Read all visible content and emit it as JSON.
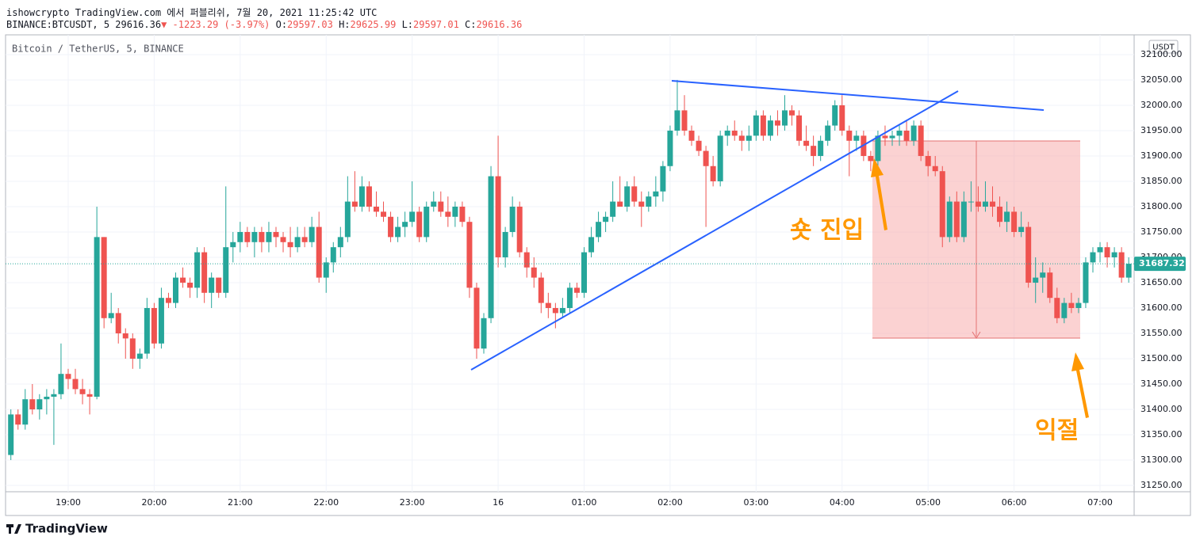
{
  "header": {
    "publisher": "ishowcrypto TradingView.com 에서 퍼블리쉬, 7월 20, 2021 11:25:42 UTC",
    "symbol": "BINANCE:BTCUSDT, 5",
    "price": "29616.36",
    "change": "▼ -1223.29 (-3.97%)",
    "ohlc": [
      {
        "label": "O:",
        "value": "29597.03"
      },
      {
        "label": "H:",
        "value": "29625.99"
      },
      {
        "label": "L:",
        "value": "29597.01"
      },
      {
        "label": "C:",
        "value": "29616.36"
      }
    ]
  },
  "footer": {
    "brand": "TradingView"
  },
  "chart_data": {
    "type": "candlestick",
    "title": "Bitcoin / TetherUS, 5, BINANCE",
    "currency": "USDT",
    "up_color": "#26a69a",
    "down_color": "#ef5350",
    "grid": true,
    "annotations": [
      "숏 진입",
      "익절"
    ],
    "categories": [
      null,
      null,
      null,
      null,
      null,
      null,
      null,
      null,
      "19:00",
      null,
      null,
      null,
      null,
      null,
      null,
      null,
      null,
      null,
      null,
      null,
      "20:00",
      null,
      null,
      null,
      null,
      null,
      null,
      null,
      null,
      null,
      null,
      null,
      "21:00",
      null,
      null,
      null,
      null,
      null,
      null,
      null,
      null,
      null,
      null,
      null,
      "22:00",
      null,
      null,
      null,
      null,
      null,
      null,
      null,
      null,
      null,
      null,
      null,
      "23:00",
      null,
      null,
      null,
      null,
      null,
      null,
      null,
      null,
      null,
      null,
      null,
      "16",
      null,
      null,
      null,
      null,
      null,
      null,
      null,
      null,
      null,
      null,
      null,
      "01:00",
      null,
      null,
      null,
      null,
      null,
      null,
      null,
      null,
      null,
      null,
      null,
      "02:00",
      null,
      null,
      null,
      null,
      null,
      null,
      null,
      null,
      null,
      null,
      null,
      "03:00",
      null,
      null,
      null,
      null,
      null,
      null,
      null,
      null,
      null,
      null,
      null,
      "04:00",
      null,
      null,
      null,
      null,
      null,
      null,
      null,
      null,
      null,
      null,
      null,
      "05:00",
      null,
      null,
      null,
      null,
      null,
      null,
      null,
      null,
      null,
      null,
      null,
      "06:00",
      null,
      null,
      null,
      null,
      null,
      null,
      null,
      null,
      null,
      null,
      null,
      "07:00",
      null,
      null,
      null,
      null
    ],
    "open": [
      31310,
      31390,
      31370,
      31420,
      31400,
      31420,
      31425,
      31430,
      31470,
      31460,
      31440,
      31430,
      31425,
      31740,
      31580,
      31590,
      31550,
      31540,
      31500,
      31510,
      31600,
      31530,
      31620,
      31610,
      31660,
      31650,
      31640,
      31710,
      31630,
      31660,
      31630,
      31720,
      31730,
      31750,
      31730,
      31750,
      31730,
      31750,
      31740,
      31730,
      31720,
      31740,
      31730,
      31760,
      31660,
      31690,
      31720,
      31740,
      31810,
      31800,
      31840,
      31800,
      31790,
      31780,
      31740,
      31760,
      31770,
      31790,
      31740,
      31800,
      31810,
      31790,
      31780,
      31800,
      31770,
      31640,
      31520,
      31580,
      31860,
      31700,
      31750,
      31800,
      31710,
      31680,
      31660,
      31610,
      31600,
      31590,
      31600,
      31640,
      31630,
      31710,
      31740,
      31770,
      31780,
      31810,
      31800,
      31840,
      31810,
      31800,
      31820,
      31830,
      31880,
      31950,
      31990,
      31950,
      31930,
      31910,
      31880,
      31850,
      31940,
      31950,
      31940,
      31930,
      31940,
      31980,
      31940,
      31970,
      31960,
      31990,
      31980,
      31930,
      31920,
      31900,
      31930,
      31960,
      32000,
      31950,
      31930,
      31940,
      31900,
      31890,
      31940,
      31935,
      31940,
      31950,
      31930,
      31960,
      31900,
      31880,
      31870,
      31740,
      31810,
      31740,
      31810,
      31810,
      31800,
      31810,
      31800,
      31770,
      31790,
      31750,
      31760,
      31650,
      31660,
      31670,
      31620,
      31580,
      31610,
      31600,
      31610,
      31690,
      31710,
      31720,
      31700,
      31710,
      31660
    ],
    "high": [
      31400,
      31400,
      31440,
      31450,
      31430,
      31440,
      31440,
      31530,
      31480,
      31480,
      31460,
      31440,
      31800,
      31740,
      31630,
      31600,
      31560,
      31550,
      31520,
      31620,
      31610,
      31640,
      31630,
      31670,
      31680,
      31660,
      31720,
      31720,
      31670,
      31660,
      31840,
      31750,
      31770,
      31760,
      31760,
      31760,
      31770,
      31760,
      31750,
      31760,
      31760,
      31760,
      31780,
      31790,
      31700,
      31730,
      31760,
      31860,
      31870,
      31860,
      31850,
      31830,
      31810,
      31790,
      31780,
      31790,
      31850,
      31800,
      31810,
      31830,
      31830,
      31820,
      31810,
      31810,
      31780,
      31650,
      31590,
      31880,
      31940,
      31760,
      31820,
      31810,
      31720,
      31700,
      31670,
      31630,
      31610,
      31620,
      31650,
      31650,
      31720,
      31760,
      31790,
      31790,
      31850,
      31860,
      31850,
      31860,
      31830,
      31830,
      31860,
      31890,
      31960,
      32050,
      32020,
      31960,
      31940,
      31920,
      31900,
      31950,
      31960,
      31970,
      31950,
      31960,
      31990,
      31990,
      31980,
      31990,
      32020,
      32000,
      31990,
      31960,
      31940,
      31940,
      31970,
      32010,
      32020,
      31960,
      31950,
      31950,
      31910,
      31950,
      31960,
      31950,
      31960,
      31970,
      31970,
      31970,
      31910,
      31900,
      31880,
      31820,
      31830,
      31830,
      31850,
      31840,
      31850,
      31840,
      31820,
      31810,
      31800,
      31790,
      31770,
      31700,
      31690,
      31680,
      31640,
      31620,
      31630,
      31620,
      31700,
      31720,
      31730,
      31730,
      31720,
      31720,
      31700
    ],
    "low": [
      31300,
      31360,
      31360,
      31390,
      31380,
      31390,
      31330,
      31420,
      31440,
      31430,
      31410,
      31390,
      31420,
      31560,
      31570,
      31530,
      31500,
      31480,
      31480,
      31500,
      31520,
      31520,
      31600,
      31600,
      31640,
      31620,
      31620,
      31610,
      31600,
      31620,
      31620,
      31690,
      31710,
      31720,
      31700,
      31710,
      31710,
      31720,
      31710,
      31700,
      31710,
      31720,
      31720,
      31650,
      31630,
      31670,
      31700,
      31730,
      31790,
      31790,
      31790,
      31780,
      31770,
      31730,
      31730,
      31740,
      31760,
      31730,
      31730,
      31790,
      31780,
      31760,
      31760,
      31760,
      31620,
      31500,
      31510,
      31570,
      31680,
      31680,
      31740,
      31700,
      31660,
      31640,
      31590,
      31580,
      31560,
      31580,
      31590,
      31620,
      31620,
      31700,
      31730,
      31750,
      31770,
      31800,
      31790,
      31800,
      31760,
      31790,
      31800,
      31810,
      31870,
      31940,
      31940,
      31920,
      31900,
      31760,
      31840,
      31840,
      31920,
      31930,
      31910,
      31910,
      31930,
      31930,
      31930,
      31940,
      31950,
      31960,
      31920,
      31910,
      31880,
      31890,
      31920,
      31950,
      31940,
      31860,
      31910,
      31890,
      31870,
      31880,
      31920,
      31920,
      31920,
      31920,
      31920,
      31890,
      31860,
      31860,
      31720,
      31730,
      31730,
      31730,
      31790,
      31790,
      31790,
      31780,
      31760,
      31750,
      31740,
      31740,
      31640,
      31610,
      31630,
      31610,
      31570,
      31570,
      31590,
      31590,
      31600,
      31670,
      31690,
      31680,
      31680,
      31650,
      31650
    ],
    "close": [
      31390,
      31370,
      31420,
      31400,
      31420,
      31425,
      31430,
      31470,
      31460,
      31440,
      31430,
      31425,
      31740,
      31580,
      31590,
      31550,
      31540,
      31500,
      31510,
      31600,
      31530,
      31620,
      31610,
      31660,
      31650,
      31640,
      31710,
      31630,
      31660,
      31630,
      31720,
      31730,
      31750,
      31730,
      31750,
      31730,
      31750,
      31740,
      31730,
      31720,
      31740,
      31730,
      31760,
      31660,
      31690,
      31720,
      31740,
      31810,
      31800,
      31840,
      31800,
      31790,
      31780,
      31740,
      31760,
      31770,
      31790,
      31740,
      31800,
      31810,
      31790,
      31780,
      31800,
      31770,
      31640,
      31520,
      31580,
      31860,
      31700,
      31750,
      31800,
      31710,
      31680,
      31660,
      31610,
      31600,
      31590,
      31600,
      31640,
      31630,
      31710,
      31740,
      31770,
      31780,
      31810,
      31800,
      31840,
      31810,
      31800,
      31820,
      31830,
      31880,
      31950,
      31990,
      31950,
      31930,
      31910,
      31880,
      31850,
      31940,
      31950,
      31940,
      31930,
      31940,
      31980,
      31940,
      31970,
      31960,
      31990,
      31980,
      31930,
      31920,
      31900,
      31930,
      31960,
      32000,
      31950,
      31930,
      31940,
      31900,
      31890,
      31940,
      31935,
      31940,
      31950,
      31930,
      31960,
      31900,
      31880,
      31870,
      31740,
      31810,
      31740,
      31810,
      31810,
      31800,
      31810,
      31800,
      31770,
      31790,
      31750,
      31760,
      31650,
      31660,
      31670,
      31620,
      31580,
      31610,
      31600,
      31610,
      31690,
      31710,
      31720,
      31700,
      31710,
      31660,
      31687.32
    ],
    "ylim": [
      31237.5,
      32139
    ],
    "yticks": [
      {
        "value": 31250,
        "label": "31250.00"
      },
      {
        "value": 31300,
        "label": "31300.00"
      },
      {
        "value": 31350,
        "label": "31350.00"
      },
      {
        "value": 31400,
        "label": "31400.00"
      },
      {
        "value": 31450,
        "label": "31450.00"
      },
      {
        "value": 31500,
        "label": "31500.00"
      },
      {
        "value": 31550,
        "label": "31550.00"
      },
      {
        "value": 31600,
        "label": "31600.00"
      },
      {
        "value": 31650,
        "label": "31650.00"
      },
      {
        "value": 31700,
        "label": "31700.00"
      },
      {
        "value": 31750,
        "label": "31750.00"
      },
      {
        "value": 31800,
        "label": "31800.00"
      },
      {
        "value": 31850,
        "label": "31850.00"
      },
      {
        "value": 31900,
        "label": "31900.00"
      },
      {
        "value": 31950,
        "label": "31950.00"
      },
      {
        "value": 32000,
        "label": "32000.00"
      },
      {
        "value": 32050,
        "label": "32050.00"
      },
      {
        "value": 32100,
        "label": "32100.00"
      }
    ]
  }
}
